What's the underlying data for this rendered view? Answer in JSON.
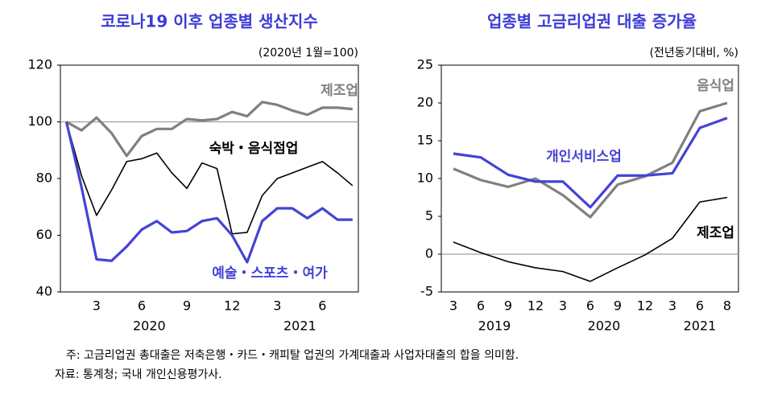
{
  "chart_data": [
    {
      "type": "line",
      "title": "코로나19 이후 업종별 생산지수",
      "subtitle": "(2020년 1월=100)",
      "categories": [
        null,
        null,
        "3",
        null,
        null,
        "6",
        null,
        null,
        "9",
        null,
        null,
        "12",
        null,
        null,
        "3",
        null,
        null,
        "6",
        null,
        null
      ],
      "x_groups": [
        {
          "label": "2020",
          "start": 0,
          "end": 11
        },
        {
          "label": "2021",
          "start": 12,
          "end": 19
        }
      ],
      "ylim": [
        40,
        120
      ],
      "yticks": [
        40,
        60,
        80,
        100,
        120
      ],
      "reference_line": 100,
      "series": [
        {
          "name": "제조업",
          "color": "#808080",
          "values": [
            100,
            97,
            101.5,
            96,
            88,
            95,
            97.5,
            97.5,
            101,
            100.5,
            101,
            103.5,
            102,
            107,
            106,
            104,
            102.5,
            105,
            105,
            104.5
          ]
        },
        {
          "name": "숙박・음식점업",
          "color": "#000000",
          "values": [
            100,
            81,
            67,
            76,
            86,
            87,
            89,
            82,
            76.5,
            85.5,
            83.5,
            60.5,
            61,
            74,
            80,
            82,
            84,
            86,
            82,
            77.5
          ]
        },
        {
          "name": "예술・스포츠・여가",
          "color": "#4343d6",
          "values": [
            100,
            77,
            51.5,
            51,
            56,
            62,
            65,
            61,
            61.5,
            65,
            66,
            60,
            50.5,
            65,
            69.5,
            69.5,
            66,
            69.5,
            65.5,
            65.5
          ]
        }
      ]
    },
    {
      "type": "line",
      "title": "업종별 고금리업권 대출 증가율",
      "subtitle": "(전년동기대비, %)",
      "categories": [
        "3",
        "6",
        "9",
        "12",
        "3",
        "6",
        "9",
        "12",
        "3",
        "6",
        "8"
      ],
      "x_groups": [
        {
          "label": "2019",
          "start": 0,
          "end": 3
        },
        {
          "label": "2020",
          "start": 4,
          "end": 7
        },
        {
          "label": "2021",
          "start": 8,
          "end": 10
        }
      ],
      "ylim": [
        -5,
        25
      ],
      "yticks": [
        -5,
        0,
        5,
        10,
        15,
        20,
        25
      ],
      "reference_line": 0,
      "series": [
        {
          "name": "음식업",
          "color": "#808080",
          "values": [
            11.3,
            9.8,
            8.9,
            10.0,
            7.8,
            4.9,
            9.2,
            10.3,
            12.1,
            18.9,
            20.0
          ]
        },
        {
          "name": "개인서비스업",
          "color": "#4343d6",
          "values": [
            13.3,
            12.8,
            10.5,
            9.6,
            9.6,
            6.2,
            10.4,
            10.4,
            10.7,
            16.7,
            18.0
          ]
        },
        {
          "name": "제조업",
          "color": "#000000",
          "values": [
            1.6,
            0.2,
            -1.0,
            -1.8,
            -2.3,
            -3.6,
            -1.8,
            -0.1,
            2.1,
            6.9,
            7.5
          ]
        }
      ]
    }
  ],
  "notes": [
    "주: 고금리업권 총대출은 저축은행・카드・캐피탈 업권의 가계대출과 사업자대출의 합을 의미함.",
    "자료: 통계청; 국내 개인신용평가사."
  ]
}
